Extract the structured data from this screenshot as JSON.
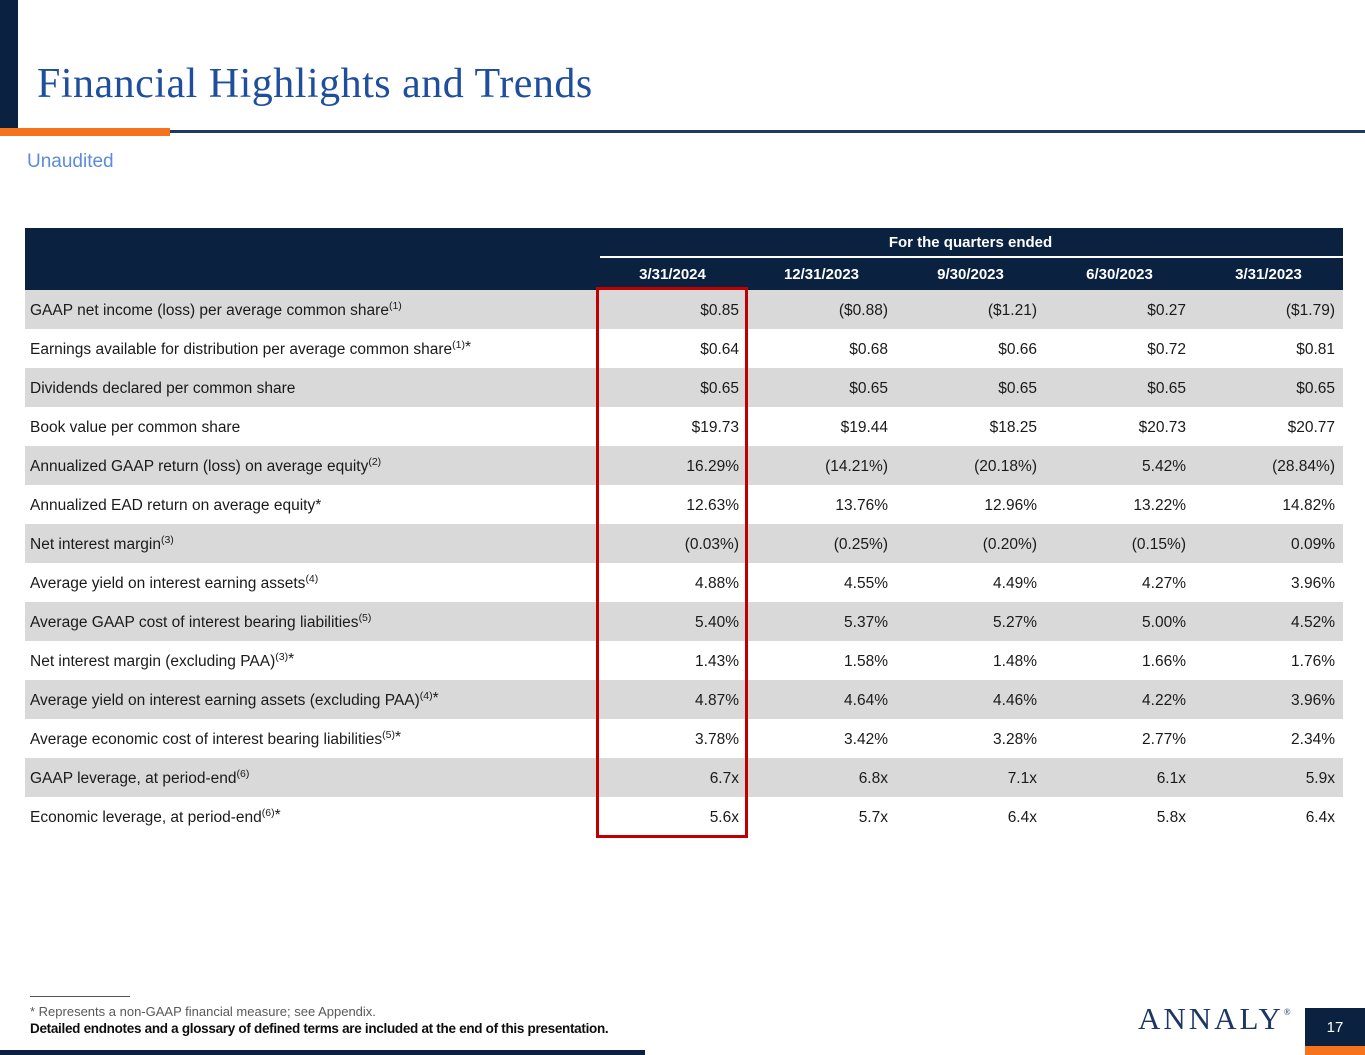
{
  "slide": {
    "title": "Financial Highlights and Trends",
    "subtitle": "Unaudited",
    "page_number": "17",
    "logo_text": "ANNALY",
    "logo_reg": "®"
  },
  "table": {
    "header_group": "For the quarters ended",
    "columns": [
      "3/31/2024",
      "12/31/2023",
      "9/30/2023",
      "6/30/2023",
      "3/31/2023"
    ],
    "rows": [
      {
        "label": "GAAP net income (loss) per average common share",
        "sup": "(1)",
        "star": "",
        "values": [
          "$0.85",
          "($0.88)",
          "($1.21)",
          "$0.27",
          "($1.79)"
        ]
      },
      {
        "label": "Earnings available for distribution per average common share",
        "sup": "(1)",
        "star": "*",
        "values": [
          "$0.64",
          "$0.68",
          "$0.66",
          "$0.72",
          "$0.81"
        ]
      },
      {
        "label": "Dividends declared per common share",
        "sup": "",
        "star": "",
        "values": [
          "$0.65",
          "$0.65",
          "$0.65",
          "$0.65",
          "$0.65"
        ]
      },
      {
        "label": "Book value per common share",
        "sup": "",
        "star": "",
        "values": [
          "$19.73",
          "$19.44",
          "$18.25",
          "$20.73",
          "$20.77"
        ]
      },
      {
        "label": "Annualized GAAP return (loss) on average equity",
        "sup": "(2)",
        "star": "",
        "values": [
          "16.29%",
          "(14.21%)",
          "(20.18%)",
          "5.42%",
          "(28.84%)"
        ]
      },
      {
        "label": "Annualized EAD return on average equity*",
        "sup": "",
        "star": "",
        "values": [
          "12.63%",
          "13.76%",
          "12.96%",
          "13.22%",
          "14.82%"
        ]
      },
      {
        "label": "Net interest margin",
        "sup": "(3)",
        "star": "",
        "values": [
          "(0.03%)",
          "(0.25%)",
          "(0.20%)",
          "(0.15%)",
          "0.09%"
        ]
      },
      {
        "label": "Average yield on interest earning assets",
        "sup": "(4)",
        "star": "",
        "values": [
          "4.88%",
          "4.55%",
          "4.49%",
          "4.27%",
          "3.96%"
        ]
      },
      {
        "label": "Average GAAP cost of interest bearing liabilities",
        "sup": "(5)",
        "star": "",
        "values": [
          "5.40%",
          "5.37%",
          "5.27%",
          "5.00%",
          "4.52%"
        ]
      },
      {
        "label": "Net interest margin (excluding PAA)",
        "sup": "(3)",
        "star": "*",
        "values": [
          "1.43%",
          "1.58%",
          "1.48%",
          "1.66%",
          "1.76%"
        ]
      },
      {
        "label": "Average yield on interest earning assets (excluding PAA)",
        "sup": "(4)",
        "star": "*",
        "values": [
          "4.87%",
          "4.64%",
          "4.46%",
          "4.22%",
          "3.96%"
        ]
      },
      {
        "label": "Average economic cost of interest bearing liabilities",
        "sup": "(5)",
        "star": "*",
        "values": [
          "3.78%",
          "3.42%",
          "3.28%",
          "2.77%",
          "2.34%"
        ]
      },
      {
        "label": "GAAP leverage, at period-end",
        "sup": "(6)",
        "star": "",
        "values": [
          "6.7x",
          "6.8x",
          "7.1x",
          "6.1x",
          "5.9x"
        ]
      },
      {
        "label": "Economic leverage, at period-end",
        "sup": "(6)",
        "star": "*",
        "values": [
          "5.6x",
          "5.7x",
          "6.4x",
          "5.8x",
          "6.4x"
        ]
      }
    ],
    "highlight": {
      "column": "3/31/2024",
      "color": "#C00000"
    }
  },
  "footer": {
    "footnote_asterisk": "* Represents a non-GAAP financial measure; see Appendix.",
    "footnote_endnotes": "Detailed endnotes and a glossary of defined terms are included at the end of this presentation."
  },
  "colors": {
    "navy": "#0A2240",
    "title_blue": "#1F4E9C",
    "orange": "#F4731C",
    "rule_navy": "#1F3864",
    "unaudited_blue": "#5B8BDB",
    "stripe_gray": "#D9D9D9",
    "highlight_red": "#C00000",
    "logo_navy": "#1C3766"
  }
}
